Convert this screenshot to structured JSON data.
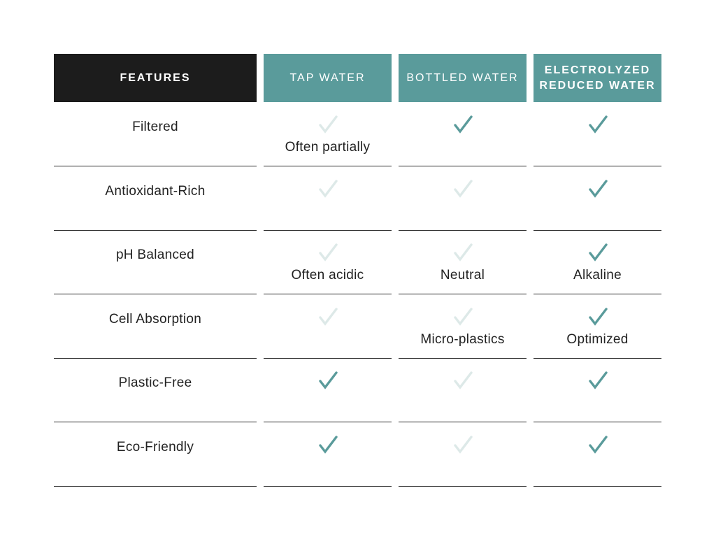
{
  "colors": {
    "header_dark": "#1c1c1c",
    "header_teal": "#5a9b9b",
    "check_active": "#5a9b9b",
    "check_inactive": "#dde9e8",
    "divider": "#2b2b2b"
  },
  "headers": {
    "features": "FEATURES",
    "tap_water": "TAP WATER",
    "bottled_water": "BOTTLED WATER",
    "erw_line1": "ELECTROLYZED",
    "erw_line2": "REDUCED WATER"
  },
  "rows": [
    {
      "feature": "Filtered",
      "tap": {
        "checked": false,
        "note": "Often partially"
      },
      "bottled": {
        "checked": true,
        "note": ""
      },
      "erw": {
        "checked": true,
        "note": ""
      }
    },
    {
      "feature": "Antioxidant-Rich",
      "tap": {
        "checked": false,
        "note": ""
      },
      "bottled": {
        "checked": false,
        "note": ""
      },
      "erw": {
        "checked": true,
        "note": ""
      }
    },
    {
      "feature": "pH Balanced",
      "tap": {
        "checked": false,
        "note": "Often acidic"
      },
      "bottled": {
        "checked": false,
        "note": "Neutral"
      },
      "erw": {
        "checked": true,
        "note": "Alkaline"
      }
    },
    {
      "feature": "Cell Absorption",
      "tap": {
        "checked": false,
        "note": ""
      },
      "bottled": {
        "checked": false,
        "note": "Micro-plastics"
      },
      "erw": {
        "checked": true,
        "note": "Optimized"
      }
    },
    {
      "feature": "Plastic-Free",
      "tap": {
        "checked": true,
        "note": ""
      },
      "bottled": {
        "checked": false,
        "note": ""
      },
      "erw": {
        "checked": true,
        "note": ""
      }
    },
    {
      "feature": "Eco-Friendly",
      "tap": {
        "checked": true,
        "note": ""
      },
      "bottled": {
        "checked": false,
        "note": ""
      },
      "erw": {
        "checked": true,
        "note": ""
      }
    }
  ]
}
